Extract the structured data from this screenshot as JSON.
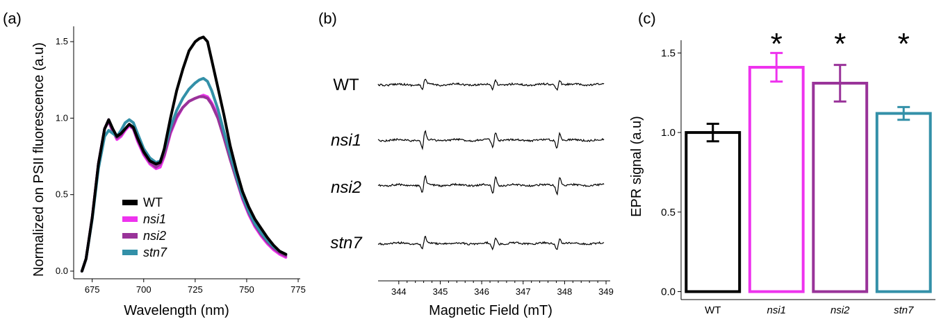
{
  "chart_data": [
    {
      "panel_label": "(a)",
      "type": "line",
      "xlabel": "Wavelength (nm)",
      "ylabel": "Normalized on PSII fluorescence (a.u)",
      "xlim": [
        666,
        776
      ],
      "ylim": [
        -0.05,
        1.6
      ],
      "xticks": [
        "675",
        "700",
        "725",
        "750",
        "775"
      ],
      "yticks": [
        "0.0",
        "0.5",
        "1.0",
        "1.5"
      ],
      "legend_position": "bottom-left",
      "x": [
        670,
        672,
        675,
        678,
        681,
        683,
        685,
        687,
        689,
        691,
        693,
        695,
        697,
        700,
        703,
        706,
        708,
        710,
        713,
        716,
        719,
        722,
        725,
        727,
        729,
        731,
        733,
        736,
        739,
        742,
        745,
        748,
        751,
        754,
        757,
        760,
        763,
        766,
        769
      ],
      "series": [
        {
          "name": "WT",
          "color": "#000000",
          "values": [
            0.0,
            0.08,
            0.35,
            0.7,
            0.93,
            0.99,
            0.93,
            0.88,
            0.9,
            0.93,
            0.96,
            0.94,
            0.87,
            0.78,
            0.72,
            0.7,
            0.71,
            0.8,
            1.0,
            1.18,
            1.32,
            1.44,
            1.5,
            1.52,
            1.53,
            1.5,
            1.38,
            1.2,
            1.02,
            0.82,
            0.66,
            0.52,
            0.42,
            0.34,
            0.28,
            0.22,
            0.17,
            0.13,
            0.11
          ]
        },
        {
          "name": "nsi1",
          "color": "#ee33ee",
          "values": [
            0.0,
            0.08,
            0.35,
            0.7,
            0.93,
            0.99,
            0.92,
            0.86,
            0.88,
            0.92,
            0.95,
            0.93,
            0.85,
            0.76,
            0.7,
            0.67,
            0.68,
            0.75,
            0.9,
            1.0,
            1.07,
            1.11,
            1.13,
            1.14,
            1.15,
            1.14,
            1.1,
            1.02,
            0.88,
            0.74,
            0.6,
            0.47,
            0.37,
            0.29,
            0.23,
            0.18,
            0.14,
            0.11,
            0.09
          ]
        },
        {
          "name": "nsi2",
          "color": "#993399",
          "values": [
            0.0,
            0.08,
            0.35,
            0.7,
            0.93,
            0.98,
            0.91,
            0.87,
            0.89,
            0.93,
            0.96,
            0.93,
            0.86,
            0.77,
            0.71,
            0.68,
            0.7,
            0.76,
            0.91,
            1.01,
            1.07,
            1.11,
            1.13,
            1.14,
            1.14,
            1.13,
            1.09,
            1.0,
            0.87,
            0.73,
            0.6,
            0.48,
            0.38,
            0.3,
            0.24,
            0.19,
            0.15,
            0.12,
            0.1
          ]
        },
        {
          "name": "stn7",
          "color": "#3390a8",
          "values": [
            0.0,
            0.08,
            0.34,
            0.67,
            0.88,
            0.92,
            0.9,
            0.88,
            0.92,
            0.97,
            0.99,
            0.97,
            0.9,
            0.8,
            0.74,
            0.71,
            0.72,
            0.79,
            0.94,
            1.05,
            1.13,
            1.19,
            1.23,
            1.25,
            1.26,
            1.24,
            1.18,
            1.06,
            0.91,
            0.76,
            0.62,
            0.49,
            0.39,
            0.31,
            0.25,
            0.2,
            0.16,
            0.13,
            0.11
          ]
        }
      ]
    },
    {
      "panel_label": "(b)",
      "type": "line",
      "xlabel": "Magnetic Field (mT)",
      "xlim": [
        343.5,
        349.1
      ],
      "xticks": [
        "344",
        "345",
        "346",
        "347",
        "348",
        "349"
      ],
      "line_color": "#000000",
      "peak_centers": [
        344.6,
        346.3,
        347.85
      ],
      "traces": [
        {
          "name": "WT",
          "italic": false,
          "amplitudes": [
            0.6,
            0.55,
            0.55
          ]
        },
        {
          "name": "nsi1",
          "italic": true,
          "amplitudes": [
            1.0,
            0.9,
            0.9
          ]
        },
        {
          "name": "nsi2",
          "italic": true,
          "amplitudes": [
            1.0,
            1.0,
            1.0
          ]
        },
        {
          "name": "stn7",
          "italic": true,
          "amplitudes": [
            0.75,
            0.7,
            0.7
          ]
        }
      ]
    },
    {
      "panel_label": "(c)",
      "type": "bar",
      "ylabel": "EPR signal (a.u)",
      "ylim": [
        -0.05,
        1.58
      ],
      "yticks": [
        "0.0",
        "0.5",
        "1.0",
        "1.5"
      ],
      "categories": [
        "WT",
        "nsi1",
        "nsi2",
        "stn7"
      ],
      "italic_categories": [
        false,
        true,
        true,
        true
      ],
      "values": [
        1.0,
        1.41,
        1.31,
        1.12
      ],
      "errors": [
        0.055,
        0.09,
        0.115,
        0.04
      ],
      "colors": [
        "#000000",
        "#ee33ee",
        "#993399",
        "#3390a8"
      ],
      "significance": [
        "",
        "*",
        "*",
        "*"
      ]
    }
  ]
}
